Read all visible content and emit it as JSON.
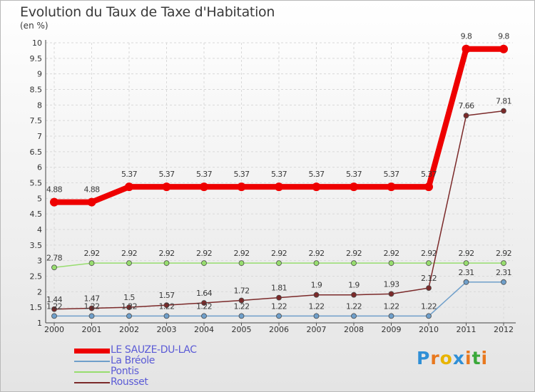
{
  "header": {
    "title": "Evolution du Taux de Taxe d'Habitation",
    "subtitle": "(en %)"
  },
  "chart_data": {
    "type": "line",
    "title": "Evolution du Taux de Taxe d'Habitation",
    "ylabel": "(en %)",
    "xlabel": "",
    "ylim": [
      1,
      10
    ],
    "yticks": [
      "1",
      "1.5",
      "2",
      "2.5",
      "3",
      "3.5",
      "4",
      "4.5",
      "5",
      "5.5",
      "6",
      "6.5",
      "7",
      "7.5",
      "8",
      "8.5",
      "9",
      "9.5",
      "10"
    ],
    "categories": [
      "2000",
      "2001",
      "2002",
      "2003",
      "2004",
      "2005",
      "2006",
      "2007",
      "2008",
      "2009",
      "2010",
      "2011",
      "2012"
    ],
    "grid": true,
    "series": [
      {
        "name": "LE SAUZE-DU-LAC",
        "color": "#ee0000",
        "values": [
          4.88,
          4.88,
          5.37,
          5.37,
          5.37,
          5.37,
          5.37,
          5.37,
          5.37,
          5.37,
          5.37,
          9.8,
          9.8
        ],
        "labels": [
          "4.88",
          "4.88",
          "5.37",
          "5.37",
          "5.37",
          "5.37",
          "5.37",
          "5.37",
          "5.37",
          "5.37",
          "5.37",
          "9.8",
          "9.8"
        ]
      },
      {
        "name": "La Bréole",
        "color": "#6f9fca",
        "values": [
          1.22,
          1.22,
          1.22,
          1.22,
          1.22,
          1.22,
          1.22,
          1.22,
          1.22,
          1.22,
          1.22,
          2.31,
          2.31
        ],
        "labels": [
          "1.22",
          "1.22",
          "1.22",
          "1.22",
          "1.22",
          "1.22",
          "1.22",
          "1.22",
          "1.22",
          "1.22",
          "1.22",
          "2.31",
          "2.31"
        ]
      },
      {
        "name": "Pontis",
        "color": "#97dd6e",
        "values": [
          2.78,
          2.92,
          2.92,
          2.92,
          2.92,
          2.92,
          2.92,
          2.92,
          2.92,
          2.92,
          2.92,
          2.92,
          2.92
        ],
        "labels": [
          "2.78",
          "2.92",
          "2.92",
          "2.92",
          "2.92",
          "2.92",
          "2.92",
          "2.92",
          "2.92",
          "2.92",
          "2.92",
          "2.92",
          "2.92"
        ]
      },
      {
        "name": "Rousset",
        "color": "#7b2a2a",
        "values": [
          1.44,
          1.47,
          1.5,
          1.57,
          1.64,
          1.72,
          1.81,
          1.9,
          1.9,
          1.93,
          2.12,
          7.66,
          7.81
        ],
        "labels": [
          "1.44",
          "1.47",
          "1.5",
          "1.57",
          "1.64",
          "1.72",
          "1.81",
          "1.9",
          "1.9",
          "1.93",
          "2.12",
          "7.66",
          "7.81"
        ]
      }
    ]
  },
  "legend": {
    "items": [
      {
        "label": "LE SAUZE-DU-LAC"
      },
      {
        "label": "La Bréole"
      },
      {
        "label": "Pontis"
      },
      {
        "label": "Rousset"
      }
    ]
  },
  "brand": {
    "logo_text": "Proxiti",
    "letters": [
      "P",
      "r",
      "o",
      "x",
      "i",
      "t",
      "i"
    ],
    "letter_colors": [
      "#2f8fd6",
      "#e8781e",
      "#e8b400",
      "#2f8fd6",
      "#e8781e",
      "#3aa83a",
      "#e8781e"
    ]
  }
}
